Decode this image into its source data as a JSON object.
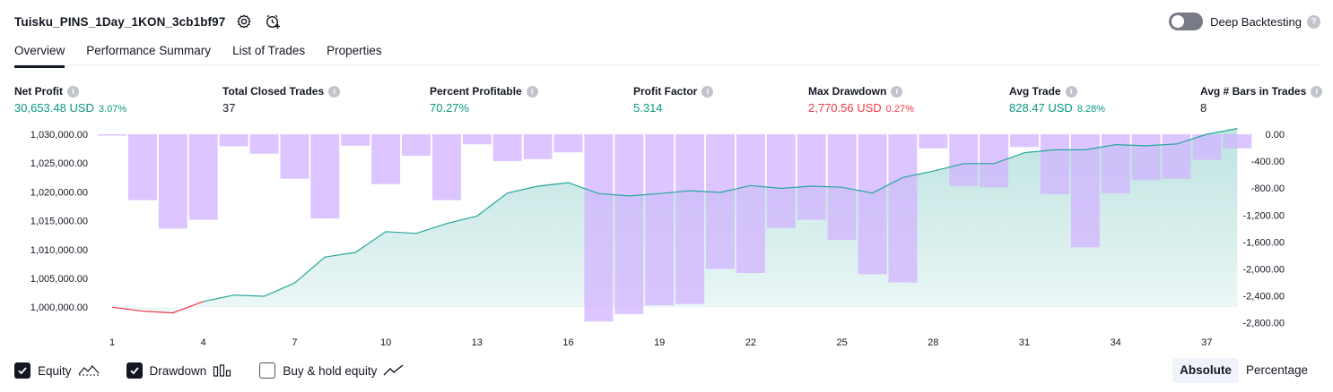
{
  "header": {
    "title": "Tuisku_PINS_1Day_1KON_3cb1bf97",
    "deep_backtesting_label": "Deep Backtesting"
  },
  "tabs": [
    "Overview",
    "Performance Summary",
    "List of Trades",
    "Properties"
  ],
  "stats": {
    "net_profit": {
      "label": "Net Profit",
      "value": "30,653.48 USD",
      "pct": "3.07%"
    },
    "total_closed_trades": {
      "label": "Total Closed Trades",
      "value": "37"
    },
    "percent_profitable": {
      "label": "Percent Profitable",
      "value": "70.27%"
    },
    "profit_factor": {
      "label": "Profit Factor",
      "value": "5.314"
    },
    "max_drawdown": {
      "label": "Max Drawdown",
      "value": "2,770.56 USD",
      "pct": "0.27%"
    },
    "avg_trade": {
      "label": "Avg Trade",
      "value": "828.47 USD",
      "pct": "8.28%"
    },
    "avg_bars": {
      "label": "Avg # Bars in Trades",
      "value": "8"
    }
  },
  "legend": {
    "equity": "Equity",
    "drawdown": "Drawdown",
    "buy_hold": "Buy & hold equity"
  },
  "modes": {
    "absolute": "Absolute",
    "percentage": "Percentage"
  },
  "colors": {
    "equity_line": "#26a69a",
    "equity_loss_line": "#f23645",
    "equity_fill": "#b2dfdb",
    "drawdown_bar": "#d1b3ff",
    "positive": "#089981",
    "negative": "#f23645"
  },
  "chart_data": {
    "type": "line",
    "x_ticks": [
      1,
      4,
      7,
      10,
      13,
      16,
      19,
      22,
      25,
      28,
      31,
      34,
      37
    ],
    "left_axis": {
      "ticks": [
        "1,030,000.00",
        "1,025,000.00",
        "1,020,000.00",
        "1,015,000.00",
        "1,010,000.00",
        "1,005,000.00",
        "1,000,000.00"
      ],
      "range": [
        998800,
        1030000
      ]
    },
    "right_axis": {
      "ticks": [
        "0.00",
        "-400.00",
        "-800.00",
        "-1,200.00",
        "-1,600.00",
        "-2,000.00",
        "-2,400.00",
        "-2,800.00"
      ],
      "range": [
        -2850,
        0
      ]
    },
    "series": [
      {
        "type": "line",
        "x": [
          1,
          2,
          3,
          4,
          5,
          6,
          7,
          8,
          9,
          10,
          11,
          12,
          13,
          14,
          15,
          16,
          17,
          18,
          19,
          20,
          21,
          22,
          23,
          24,
          25,
          26,
          27,
          28,
          29,
          30,
          31,
          32,
          33,
          34,
          35,
          36,
          37,
          38
        ],
        "values": [
          1000000,
          999300,
          999000,
          1001000,
          1002100,
          1001900,
          1004200,
          1008700,
          1009500,
          1013100,
          1012800,
          1014500,
          1015800,
          1019800,
          1021000,
          1021600,
          1019700,
          1019300,
          1019700,
          1020200,
          1019900,
          1021100,
          1020600,
          1021000,
          1020800,
          1019800,
          1022500,
          1023600,
          1024900,
          1024900,
          1026800,
          1027300,
          1027300,
          1028200,
          1028000,
          1028300,
          1030000,
          1031000
        ]
      },
      {
        "type": "bar",
        "x": [
          1,
          2,
          3,
          4,
          5,
          6,
          7,
          8,
          9,
          10,
          11,
          12,
          13,
          14,
          15,
          16,
          17,
          18,
          19,
          20,
          21,
          22,
          23,
          24,
          25,
          26,
          27,
          28,
          29,
          30,
          31,
          32,
          33,
          34,
          35,
          36,
          37,
          38
        ],
        "values": [
          -20,
          -980,
          -1400,
          -1270,
          -180,
          -290,
          -660,
          -1250,
          -170,
          -740,
          -320,
          -980,
          -150,
          -400,
          -370,
          -270,
          -2780,
          -2670,
          -2540,
          -2520,
          -2000,
          -2060,
          -1390,
          -1270,
          -1570,
          -2080,
          -2200,
          -210,
          -770,
          -790,
          -190,
          -890,
          -1680,
          -880,
          -680,
          -660,
          -380,
          -210
        ]
      }
    ]
  }
}
